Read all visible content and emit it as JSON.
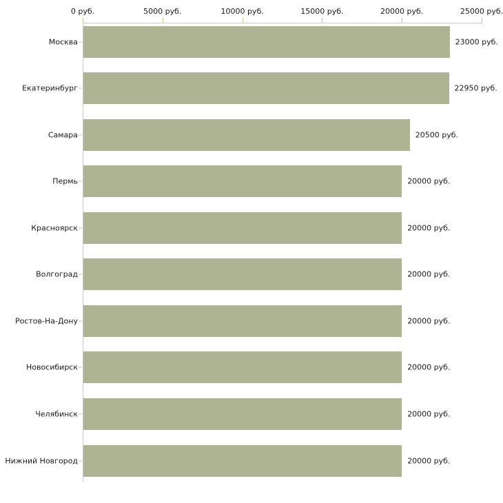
{
  "chart_data": {
    "type": "bar",
    "orientation": "horizontal",
    "title": "",
    "xlabel": "",
    "ylabel": "",
    "unit": "руб.",
    "categories": [
      "Москва",
      "Екатеринбург",
      "Самара",
      "Пермь",
      "Красноярск",
      "Волгоград",
      "Ростов-На-Дону",
      "Новосибирск",
      "Челябинск",
      "Нижний Новгород"
    ],
    "values": [
      23000,
      22950,
      20500,
      20000,
      20000,
      20000,
      20000,
      20000,
      20000,
      20000
    ],
    "value_labels": [
      "23000 руб.",
      "22950 руб.",
      "20500 руб.",
      "20000 руб.",
      "20000 руб.",
      "20000 руб.",
      "20000 руб.",
      "20000 руб.",
      "20000 руб.",
      "20000 руб."
    ],
    "x_ticks": [
      0,
      5000,
      10000,
      15000,
      20000,
      25000
    ],
    "x_tick_labels": [
      "0 руб.",
      "5000 руб.",
      "10000 руб.",
      "15000 руб.",
      "20000 руб.",
      "25000 руб."
    ],
    "xlim": [
      0,
      25000
    ],
    "grid": false,
    "legend": false,
    "axis_position": "top",
    "colors": {
      "bar": "#aeb394",
      "axis_line": "#c8c8c8",
      "tick_mark": "#c5c490",
      "text": "#1a1a1a",
      "background": "#ffffff"
    }
  }
}
